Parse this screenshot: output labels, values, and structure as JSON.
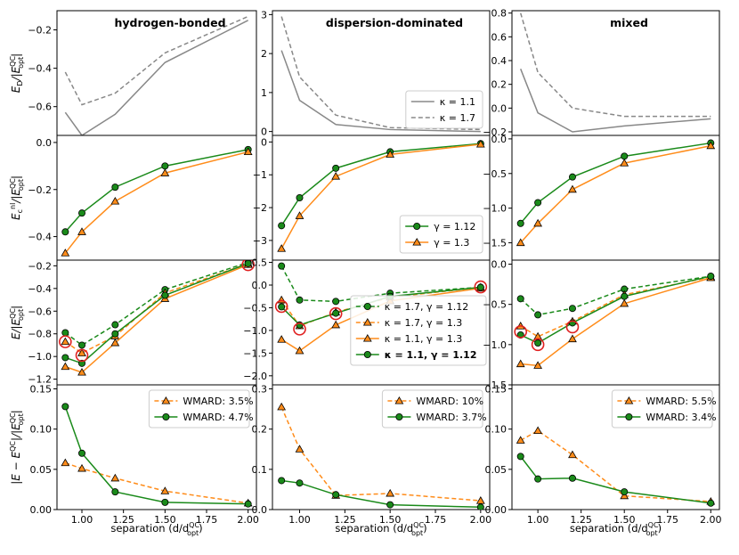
{
  "chart_data": {
    "type": "line",
    "x": [
      0.9,
      1.0,
      1.2,
      1.5,
      2.0
    ],
    "xlabel": "separation (d/d",
    "xlabel_sup": "QC",
    "xlabel_sub": "opt",
    "xlabel_tail": ")",
    "x_ticks": [
      1.0,
      1.25,
      1.5,
      1.75,
      2.0
    ],
    "x_tick_labels": [
      "1.00",
      "1.25",
      "1.50",
      "1.75",
      "2.00"
    ],
    "xlim": [
      0.85,
      2.05
    ],
    "columns": [
      {
        "title": "hydrogen-bonded"
      },
      {
        "title": "dispersion-dominated"
      },
      {
        "title": "mixed"
      }
    ],
    "rows": [
      {
        "ylabel": {
          "main": "E",
          "sub": "D",
          "mid": "/|E",
          "sup": "QC",
          "sub2": "opt",
          "tail": "|"
        },
        "panels": [
          {
            "ylim": [
              -0.75,
              -0.1
            ],
            "ticks": [
              -0.6,
              -0.4,
              -0.2
            ],
            "tick_labels": [
              "−0.6",
              "−0.4",
              "−0.2"
            ],
            "series": [
              {
                "key": "k11",
                "name": "κ = 1.1",
                "style": "solid",
                "color": "#888888",
                "marker": "none",
                "values": [
                  -0.63,
                  -0.75,
                  -0.64,
                  -0.37,
                  -0.15
                ]
              },
              {
                "key": "k17",
                "name": "κ = 1.7",
                "style": "dashed",
                "color": "#888888",
                "marker": "none",
                "values": [
                  -0.42,
                  -0.59,
                  -0.53,
                  -0.32,
                  -0.13
                ]
              }
            ]
          },
          {
            "ylim": [
              -0.1,
              3.1
            ],
            "ticks": [
              0,
              1,
              2,
              3
            ],
            "tick_labels": [
              "0",
              "1",
              "2",
              "3"
            ],
            "legend": {
              "position": "bottom-right",
              "entries": [
                "k11",
                "k17"
              ]
            },
            "series": [
              {
                "key": "k11",
                "name": "κ = 1.1",
                "style": "solid",
                "color": "#888888",
                "marker": "none",
                "values": [
                  2.08,
                  0.8,
                  0.18,
                  0.05,
                  0.0
                ]
              },
              {
                "key": "k17",
                "name": "κ = 1.7",
                "style": "dashed",
                "color": "#888888",
                "marker": "none",
                "values": [
                  2.95,
                  1.4,
                  0.42,
                  0.1,
                  0.05
                ]
              }
            ]
          },
          {
            "ylim": [
              -0.23,
              0.82
            ],
            "ticks": [
              -0.2,
              0.0,
              0.2,
              0.4,
              0.6,
              0.8
            ],
            "tick_labels": [
              "−0.2",
              "0.0",
              "0.2",
              "0.4",
              "0.6",
              "0.8"
            ],
            "series": [
              {
                "key": "k11",
                "name": "κ = 1.1",
                "style": "solid",
                "color": "#888888",
                "marker": "none",
                "values": [
                  0.33,
                  -0.04,
                  -0.2,
                  -0.15,
                  -0.09
                ]
              },
              {
                "key": "k17",
                "name": "κ = 1.7",
                "style": "dashed",
                "color": "#888888",
                "marker": "none",
                "values": [
                  0.8,
                  0.3,
                  0.0,
                  -0.07,
                  -0.07
                ]
              }
            ]
          }
        ]
      },
      {
        "ylabel": {
          "main": "E",
          "sub": "c",
          "sup1": "nl",
          "mid": "/|E",
          "sup": "QC",
          "sub2": "opt",
          "tail": "|"
        },
        "panels": [
          {
            "ylim": [
              -0.5,
              0.03
            ],
            "ticks": [
              -0.4,
              -0.2,
              0.0
            ],
            "tick_labels": [
              "−0.4",
              "−0.2",
              "0.0"
            ],
            "series": [
              {
                "key": "g112",
                "name": "γ = 1.12",
                "style": "solid",
                "color": "#1a8a1a",
                "marker": "circle",
                "values": [
                  -0.38,
                  -0.3,
                  -0.19,
                  -0.1,
                  -0.03
                ]
              },
              {
                "key": "g13",
                "name": "γ = 1.3",
                "style": "solid",
                "color": "#ff8c1a",
                "marker": "triangle",
                "values": [
                  -0.47,
                  -0.38,
                  -0.25,
                  -0.13,
                  -0.04
                ]
              }
            ]
          },
          {
            "ylim": [
              -3.6,
              0.2
            ],
            "ticks": [
              -3,
              -2,
              -1,
              0
            ],
            "tick_labels": [
              "−3",
              "−2",
              "−1",
              "0"
            ],
            "legend": {
              "position": "bottom-right",
              "entries": [
                "g112",
                "g13"
              ]
            },
            "series": [
              {
                "key": "g112",
                "name": "γ = 1.12",
                "style": "solid",
                "color": "#1a8a1a",
                "marker": "circle",
                "values": [
                  -2.55,
                  -1.7,
                  -0.8,
                  -0.3,
                  -0.05
                ]
              },
              {
                "key": "g13",
                "name": "γ = 1.3",
                "style": "solid",
                "color": "#ff8c1a",
                "marker": "triangle",
                "values": [
                  -3.25,
                  -2.25,
                  -1.05,
                  -0.38,
                  -0.07
                ]
              }
            ]
          },
          {
            "ylim": [
              -1.75,
              0.05
            ],
            "ticks": [
              -1.5,
              -1.0,
              -0.5,
              0.0
            ],
            "tick_labels": [
              "−1.5",
              "−1.0",
              "−0.5",
              "0.0"
            ],
            "series": [
              {
                "key": "g112",
                "name": "γ = 1.12",
                "style": "solid",
                "color": "#1a8a1a",
                "marker": "circle",
                "values": [
                  -1.22,
                  -0.92,
                  -0.55,
                  -0.25,
                  -0.06
                ]
              },
              {
                "key": "g13",
                "name": "γ = 1.3",
                "style": "solid",
                "color": "#ff8c1a",
                "marker": "triangle",
                "values": [
                  -1.5,
                  -1.22,
                  -0.73,
                  -0.35,
                  -0.1
                ]
              }
            ]
          }
        ]
      },
      {
        "ylabel": {
          "main": "E",
          "mid": "/|E",
          "sup": "QC",
          "sub2": "opt",
          "tail": "|"
        },
        "panels": [
          {
            "ylim": [
              -1.25,
              -0.15
            ],
            "ticks": [
              -1.2,
              -1.0,
              -0.8,
              -0.6,
              -0.4,
              -0.2
            ],
            "tick_labels": [
              "−1.2",
              "−1.0",
              "−0.8",
              "−0.6",
              "−0.4",
              "−0.2"
            ],
            "series": [
              {
                "key": "k17g112",
                "name": "κ = 1.7, γ = 1.12",
                "style": "dashed",
                "color": "#1a8a1a",
                "marker": "circle",
                "values": [
                  -0.79,
                  -0.9,
                  -0.72,
                  -0.41,
                  -0.17
                ]
              },
              {
                "key": "k17g13",
                "name": "κ = 1.7, γ = 1.3",
                "style": "dashed",
                "color": "#ff8c1a",
                "marker": "triangle",
                "values": [
                  -0.87,
                  -0.97,
                  -0.82,
                  -0.44,
                  -0.18
                ]
              },
              {
                "key": "k11g13",
                "name": "κ = 1.1, γ = 1.3",
                "style": "solid",
                "color": "#ff8c1a",
                "marker": "triangle",
                "values": [
                  -1.09,
                  -1.14,
                  -0.88,
                  -0.49,
                  -0.19
                ]
              },
              {
                "key": "k11g112",
                "name": "κ = 1.1, γ = 1.12",
                "style": "solid",
                "color": "#1a8a1a",
                "marker": "circle",
                "values": [
                  -1.01,
                  -1.06,
                  -0.8,
                  -0.46,
                  -0.18
                ]
              }
            ],
            "highlights": [
              {
                "x": 0.9,
                "y": -0.87
              },
              {
                "x": 1.0,
                "y": -0.99
              },
              {
                "x": 2.0,
                "y": -0.19
              }
            ]
          },
          {
            "ylim": [
              -2.2,
              0.55
            ],
            "ticks": [
              -2.0,
              -1.5,
              -1.0,
              -0.5,
              0.0,
              0.5
            ],
            "tick_labels": [
              "−2.0",
              "−1.5",
              "−1.0",
              "−0.5",
              "0.0",
              "0.5"
            ],
            "legend": {
              "position": "lower-right",
              "entries": [
                "k17g112",
                "k17g13",
                "k11g13",
                "k11g112"
              ],
              "bold": "k11g112"
            },
            "series": [
              {
                "key": "k17g112",
                "name": "κ = 1.7, γ = 1.12",
                "style": "dashed",
                "color": "#1a8a1a",
                "marker": "circle",
                "values": [
                  0.42,
                  -0.33,
                  -0.36,
                  -0.18,
                  -0.05
                ]
              },
              {
                "key": "k17g13",
                "name": "κ = 1.7, γ = 1.3",
                "style": "dashed",
                "color": "#ff8c1a",
                "marker": "triangle",
                "values": [
                  -0.33,
                  -0.9,
                  -0.6,
                  -0.27,
                  -0.05
                ]
              },
              {
                "key": "k11g13",
                "name": "κ = 1.1, γ = 1.3",
                "style": "solid",
                "color": "#ff8c1a",
                "marker": "triangle",
                "values": [
                  -1.2,
                  -1.45,
                  -0.88,
                  -0.35,
                  -0.07
                ]
              },
              {
                "key": "k11g112",
                "name": "κ = 1.1, γ = 1.12",
                "style": "solid",
                "color": "#1a8a1a",
                "marker": "circle",
                "values": [
                  -0.48,
                  -0.88,
                  -0.62,
                  -0.25,
                  -0.05
                ]
              }
            ],
            "highlights": [
              {
                "x": 0.9,
                "y": -0.47
              },
              {
                "x": 1.0,
                "y": -0.97
              },
              {
                "x": 1.2,
                "y": -0.63
              },
              {
                "x": 2.0,
                "y": -0.04
              }
            ]
          },
          {
            "ylim": [
              -1.5,
              0.05
            ],
            "ticks": [
              -1.5,
              -1.0,
              -0.5,
              0.0
            ],
            "tick_labels": [
              "−1.5",
              "−1.0",
              "−0.5",
              "0.0"
            ],
            "series": [
              {
                "key": "k17g112",
                "name": "κ = 1.7, γ = 1.12",
                "style": "dashed",
                "color": "#1a8a1a",
                "marker": "circle",
                "values": [
                  -0.43,
                  -0.63,
                  -0.55,
                  -0.31,
                  -0.15
                ]
              },
              {
                "key": "k17g13",
                "name": "κ = 1.7, γ = 1.3",
                "style": "dashed",
                "color": "#ff8c1a",
                "marker": "triangle",
                "values": [
                  -0.77,
                  -0.9,
                  -0.71,
                  -0.38,
                  -0.16
                ]
              },
              {
                "key": "k11g13",
                "name": "κ = 1.1, γ = 1.3",
                "style": "solid",
                "color": "#ff8c1a",
                "marker": "triangle",
                "values": [
                  -1.24,
                  -1.26,
                  -0.93,
                  -0.49,
                  -0.17
                ]
              },
              {
                "key": "k11g112",
                "name": "κ = 1.1, γ = 1.12",
                "style": "solid",
                "color": "#1a8a1a",
                "marker": "circle",
                "values": [
                  -0.88,
                  -0.98,
                  -0.73,
                  -0.4,
                  -0.15
                ]
              }
            ],
            "highlights": [
              {
                "x": 0.9,
                "y": -0.84
              },
              {
                "x": 1.0,
                "y": -1.0
              },
              {
                "x": 1.2,
                "y": -0.78
              }
            ]
          }
        ]
      },
      {
        "ylabel": {
          "main": "|E − E",
          "sup1": "QC",
          "mid": "|/|E",
          "sup": "QC",
          "sub2": "opt",
          "tail": "|"
        },
        "panels": [
          {
            "ylim": [
              0,
              0.155
            ],
            "ticks": [
              0.0,
              0.05,
              0.1,
              0.15
            ],
            "tick_labels": [
              "0.00",
              "0.05",
              "0.10",
              "0.15"
            ],
            "legend": {
              "position": "top-right",
              "entries": [
                "w1",
                "w2"
              ]
            },
            "series": [
              {
                "key": "w1",
                "name": "WMARD: 3.5%",
                "style": "dashed",
                "color": "#ff8c1a",
                "marker": "triangle",
                "values": [
                  0.058,
                  0.051,
                  0.039,
                  0.023,
                  0.008
                ]
              },
              {
                "key": "w2",
                "name": "WMARD: 4.7%",
                "style": "solid",
                "color": "#1a8a1a",
                "marker": "circle",
                "values": [
                  0.128,
                  0.07,
                  0.022,
                  0.009,
                  0.007
                ]
              }
            ]
          },
          {
            "ylim": [
              0,
              0.31
            ],
            "ticks": [
              0.0,
              0.1,
              0.2,
              0.3
            ],
            "tick_labels": [
              "0.0",
              "0.1",
              "0.2",
              "0.3"
            ],
            "legend": {
              "position": "top-right",
              "entries": [
                "w1",
                "w2"
              ]
            },
            "series": [
              {
                "key": "w1",
                "name": "WMARD: 10%",
                "style": "dashed",
                "color": "#ff8c1a",
                "marker": "triangle",
                "values": [
                  0.255,
                  0.15,
                  0.035,
                  0.04,
                  0.022
                ]
              },
              {
                "key": "w2",
                "name": "WMARD: 3.7%",
                "style": "solid",
                "color": "#1a8a1a",
                "marker": "circle",
                "values": [
                  0.072,
                  0.066,
                  0.037,
                  0.012,
                  0.006
                ]
              }
            ]
          },
          {
            "ylim": [
              0,
              0.155
            ],
            "ticks": [
              0.0,
              0.05,
              0.1,
              0.15
            ],
            "tick_labels": [
              "0.00",
              "0.05",
              "0.10",
              "0.15"
            ],
            "legend": {
              "position": "top-right",
              "entries": [
                "w1",
                "w2"
              ]
            },
            "series": [
              {
                "key": "w1",
                "name": "WMARD: 5.5%",
                "style": "dashed",
                "color": "#ff8c1a",
                "marker": "triangle",
                "values": [
                  0.086,
                  0.098,
                  0.068,
                  0.017,
                  0.01
                ]
              },
              {
                "key": "w2",
                "name": "WMARD: 3.4%",
                "style": "solid",
                "color": "#1a8a1a",
                "marker": "circle",
                "values": [
                  0.066,
                  0.038,
                  0.039,
                  0.022,
                  0.008
                ]
              }
            ]
          }
        ]
      }
    ]
  }
}
